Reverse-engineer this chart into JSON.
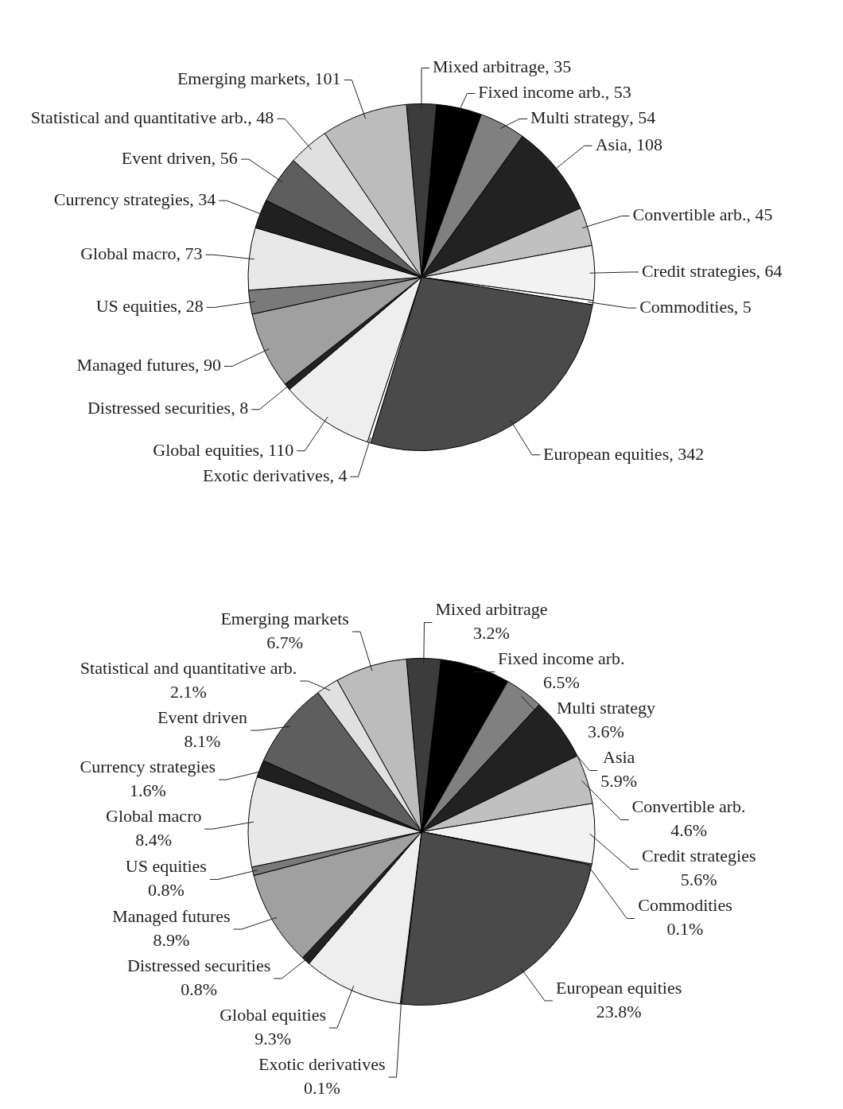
{
  "chart_data": [
    {
      "type": "pie",
      "categories": [
        "Mixed arbitrage",
        "Fixed income arb.",
        "Multi strategy",
        "Asia",
        "Convertible arb.",
        "Credit strategies",
        "Commodities",
        "European equities",
        "Exotic derivatives",
        "Global equities",
        "Distressed securities",
        "Managed futures",
        "US equities",
        "Global macro",
        "Currency strategies",
        "Event driven",
        "Statistical and quantitative arb.",
        "Emerging markets"
      ],
      "values": [
        35,
        53,
        54,
        108,
        45,
        64,
        5,
        342,
        4,
        110,
        8,
        90,
        28,
        73,
        34,
        56,
        48,
        101
      ],
      "colors": [
        "#3c3c3c",
        "#000000",
        "#808080",
        "#222222",
        "#c0c0c0",
        "#f2f2f2",
        "#ffffff",
        "#4a4a4a",
        "#ffffff",
        "#eeeeee",
        "#222222",
        "#a0a0a0",
        "#7a7a7a",
        "#e8e8e8",
        "#202020",
        "#5e5e5e",
        "#e0e0e0",
        "#bcbcbc"
      ],
      "value_labels": [
        ", 35",
        ", 53",
        ", 54",
        ", 108",
        ", 45",
        ", 64",
        ", 5",
        ", 342",
        ", 4",
        ", 110",
        ", 8",
        ", 90",
        ", 28",
        ", 73",
        ", 34",
        ", 56",
        ", 48",
        ", 101"
      ]
    },
    {
      "type": "pie",
      "categories": [
        "Mixed arbitrage",
        "Fixed income arb.",
        "Multi strategy",
        "Asia",
        "Convertible arb.",
        "Credit strategies",
        "Commodities",
        "European equities",
        "Exotic derivatives",
        "Global equities",
        "Distressed securities",
        "Managed futures",
        "US equities",
        "Global macro",
        "Currency strategies",
        "Event driven",
        "Statistical and quantitative arb.",
        "Emerging markets"
      ],
      "values": [
        3.2,
        6.5,
        3.6,
        5.9,
        4.6,
        5.6,
        0.1,
        23.8,
        0.1,
        9.3,
        0.8,
        8.9,
        0.8,
        8.4,
        1.6,
        8.1,
        2.1,
        6.7
      ],
      "value_labels": [
        "3.2%",
        "6.5%",
        "3.6%",
        "5.9%",
        "4.6%",
        "5.6%",
        "0.1%",
        "23.8%",
        "0.1%",
        "9.3%",
        "0.8%",
        "8.9%",
        "0.8%",
        "8.4%",
        "1.6%",
        "8.1%",
        "2.1%",
        "6.7%"
      ],
      "colors": [
        "#3c3c3c",
        "#000000",
        "#808080",
        "#222222",
        "#c0c0c0",
        "#f2f2f2",
        "#ffffff",
        "#4a4a4a",
        "#ffffff",
        "#eeeeee",
        "#222222",
        "#a0a0a0",
        "#7a7a7a",
        "#e8e8e8",
        "#202020",
        "#5e5e5e",
        "#e0e0e0",
        "#bcbcbc"
      ]
    }
  ]
}
